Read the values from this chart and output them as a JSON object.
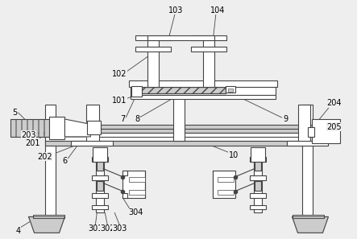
{
  "bg_color": "#eeeeee",
  "lc": "#444444",
  "lw": 0.8,
  "lg": "#cccccc",
  "lw2": "#ffffff",
  "lm": "#aaaaaa"
}
